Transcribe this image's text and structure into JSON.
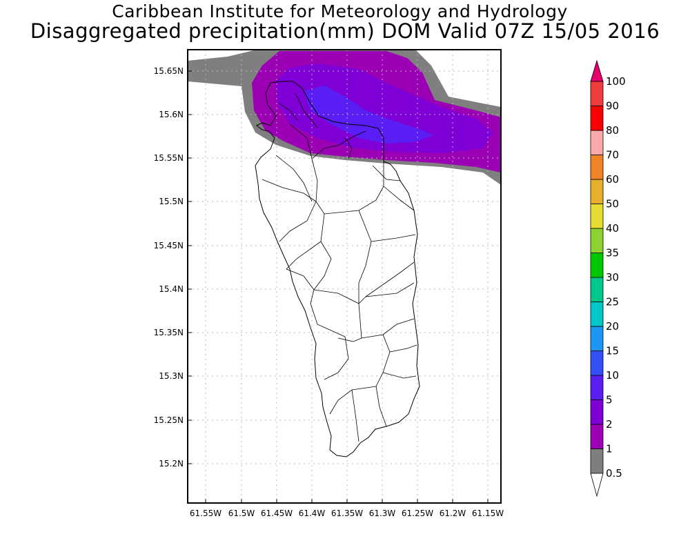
{
  "title_line1": "Caribbean Institute for Meteorology and Hydrology",
  "title_line2": "Disaggregated precipitation(mm) DOM Valid 07Z 15/05 2016",
  "lat_labels": [
    "15.65N",
    "15.6N",
    "15.55N",
    "15.5N",
    "15.45N",
    "15.4N",
    "15.35N",
    "15.3N",
    "15.25N",
    "15.2N"
  ],
  "lon_labels": [
    "61.55W",
    "61.5W",
    "61.45W",
    "61.4W",
    "61.35W",
    "61.3W",
    "61.25W",
    "61.2W",
    "61.15W"
  ],
  "colorbar": {
    "levels": [
      "0.5",
      "1",
      "2",
      "5",
      "10",
      "15",
      "20",
      "25",
      "30",
      "35",
      "40",
      "50",
      "60",
      "70",
      "80",
      "90",
      "100"
    ],
    "colors": [
      "#7f7f7f",
      "#9b00b4",
      "#7f00d7",
      "#5a1ef5",
      "#3250f5",
      "#1e96f5",
      "#00c8c8",
      "#00c88c",
      "#00c800",
      "#8cd232",
      "#e6dc32",
      "#e6af2d",
      "#f08228",
      "#faaaaa",
      "#fa0000",
      "#f03c3c"
    ],
    "top_arrow_color": "#e6006e",
    "bottom_arrow_color": "#ffffff"
  }
}
